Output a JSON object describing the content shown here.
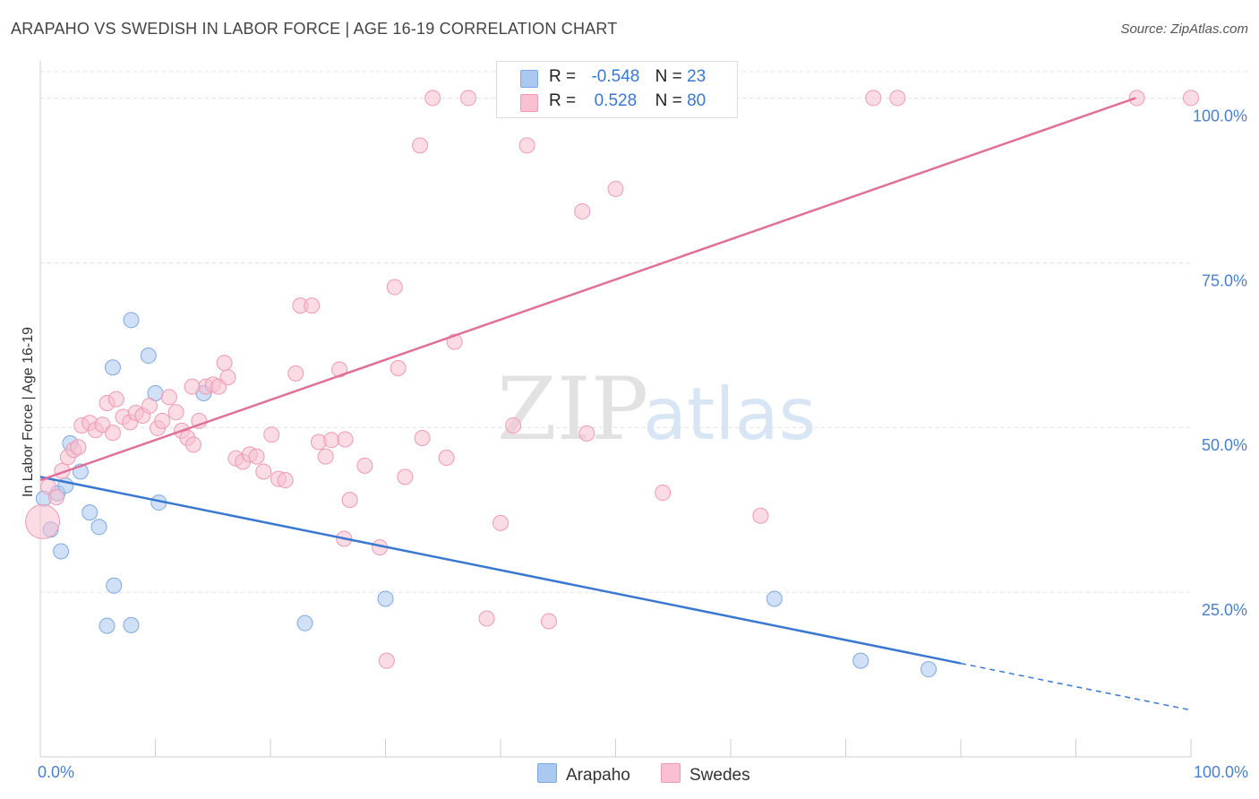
{
  "title": "ARAPAHO VS SWEDISH IN LABOR FORCE | AGE 16-19 CORRELATION CHART",
  "source": "Source: ZipAtlas.com",
  "watermark": {
    "zip": "ZIP",
    "atlas": "atlas"
  },
  "legend": {
    "rows": [
      {
        "r_label": "R =",
        "r_value": "-0.548",
        "n_label": "N =",
        "n_value": "23",
        "color": "#aac8f0",
        "stroke": "#7fa8e0"
      },
      {
        "r_label": "R =",
        "r_value": "0.528",
        "n_label": "N =",
        "n_value": "80",
        "color": "#f8c0d0",
        "stroke": "#ee9ab4"
      }
    ],
    "bottom": [
      {
        "label": "Arapaho",
        "color": "#aac8f0",
        "stroke": "#7fa8e0"
      },
      {
        "label": "Swedes",
        "color": "#f8c0d0",
        "stroke": "#ee9ab4"
      }
    ]
  },
  "chart_data": {
    "type": "scatter",
    "title": "ARAPAHO VS SWEDISH IN LABOR FORCE | AGE 16-19 CORRELATION CHART",
    "xlabel": "",
    "ylabel": "In Labor Force | Age 16-19",
    "xlim": [
      0,
      100
    ],
    "ylim": [
      0,
      104
    ],
    "x_tick_labels": [
      "0.0%",
      "100.0%"
    ],
    "y_ticks": [
      {
        "value": 25,
        "label": "25.0%"
      },
      {
        "value": 50,
        "label": "50.0%"
      },
      {
        "value": 75,
        "label": "75.0%"
      },
      {
        "value": 100,
        "label": "100.0%"
      }
    ],
    "grid": true,
    "series": [
      {
        "name": "Arapaho",
        "color": "#aac8f0",
        "stroke": "#7fa8e0",
        "line_color": "#3a78d0",
        "points": [
          [
            0.3,
            39.2
          ],
          [
            0.9,
            34.5
          ],
          [
            1.5,
            40.0
          ],
          [
            1.8,
            31.2
          ],
          [
            2.2,
            41.2
          ],
          [
            2.6,
            47.6
          ],
          [
            3.5,
            43.3
          ],
          [
            4.3,
            37.1
          ],
          [
            5.1,
            34.9
          ],
          [
            5.8,
            19.9
          ],
          [
            6.3,
            59.1
          ],
          [
            6.4,
            26.0
          ],
          [
            7.9,
            66.3
          ],
          [
            7.9,
            20.0
          ],
          [
            9.4,
            60.9
          ],
          [
            10.0,
            55.2
          ],
          [
            10.3,
            38.6
          ],
          [
            14.2,
            55.2
          ],
          [
            23.0,
            20.3
          ],
          [
            30.0,
            24.0
          ],
          [
            63.8,
            24.0
          ],
          [
            71.3,
            14.6
          ],
          [
            77.2,
            13.3
          ]
        ],
        "trend": {
          "x0": 0,
          "y0": 42.5,
          "x1": 80,
          "y1": 14.2,
          "dash_x1": 100,
          "dash_y1": 7.1
        }
      },
      {
        "name": "Swedes",
        "color": "#f8c0d0",
        "stroke": "#ee9ab4",
        "line_color": "#e07098",
        "points": [
          [
            0.2,
            35.7
          ],
          [
            0.7,
            41.0
          ],
          [
            1.4,
            39.4
          ],
          [
            1.9,
            43.4
          ],
          [
            2.4,
            45.5
          ],
          [
            2.9,
            46.6
          ],
          [
            3.3,
            47.0
          ],
          [
            3.6,
            50.3
          ],
          [
            4.3,
            50.7
          ],
          [
            4.8,
            49.6
          ],
          [
            5.4,
            50.4
          ],
          [
            5.8,
            53.7
          ],
          [
            6.3,
            49.2
          ],
          [
            6.6,
            54.3
          ],
          [
            7.2,
            51.6
          ],
          [
            7.8,
            50.8
          ],
          [
            8.3,
            52.2
          ],
          [
            8.9,
            51.8
          ],
          [
            9.5,
            53.3
          ],
          [
            10.2,
            49.9
          ],
          [
            10.6,
            51.0
          ],
          [
            11.2,
            54.6
          ],
          [
            11.8,
            52.3
          ],
          [
            12.3,
            49.5
          ],
          [
            12.8,
            48.4
          ],
          [
            13.3,
            47.4
          ],
          [
            13.8,
            51.0
          ],
          [
            14.4,
            56.2
          ],
          [
            15.0,
            56.5
          ],
          [
            15.5,
            56.2
          ],
          [
            16.0,
            59.8
          ],
          [
            16.3,
            57.6
          ],
          [
            17.0,
            45.3
          ],
          [
            17.6,
            44.8
          ],
          [
            18.2,
            45.9
          ],
          [
            18.8,
            45.6
          ],
          [
            19.4,
            43.3
          ],
          [
            20.1,
            48.9
          ],
          [
            20.7,
            42.2
          ],
          [
            21.3,
            42.0
          ],
          [
            22.2,
            58.2
          ],
          [
            22.6,
            68.5
          ],
          [
            23.6,
            68.5
          ],
          [
            24.2,
            47.8
          ],
          [
            24.8,
            45.6
          ],
          [
            25.3,
            48.1
          ],
          [
            26.0,
            58.8
          ],
          [
            26.4,
            33.1
          ],
          [
            26.9,
            39.0
          ],
          [
            28.2,
            44.2
          ],
          [
            29.5,
            31.8
          ],
          [
            30.1,
            14.6
          ],
          [
            30.8,
            71.3
          ],
          [
            31.1,
            59.0
          ],
          [
            31.7,
            42.5
          ],
          [
            33.0,
            92.8
          ],
          [
            33.2,
            48.4
          ],
          [
            34.1,
            100.0
          ],
          [
            35.3,
            45.4
          ],
          [
            36.0,
            63.0
          ],
          [
            37.2,
            100.0
          ],
          [
            38.8,
            21.0
          ],
          [
            40.0,
            35.5
          ],
          [
            41.1,
            50.3
          ],
          [
            42.3,
            92.8
          ],
          [
            44.2,
            20.6
          ],
          [
            47.1,
            82.8
          ],
          [
            47.5,
            49.1
          ],
          [
            48.2,
            100.0
          ],
          [
            50.0,
            86.2
          ],
          [
            54.1,
            40.1
          ],
          [
            56.3,
            100.0
          ],
          [
            56.8,
            100.0
          ],
          [
            62.6,
            36.6
          ],
          [
            72.4,
            100.0
          ],
          [
            74.5,
            100.0
          ],
          [
            95.3,
            100.0
          ],
          [
            100.0,
            100.0
          ],
          [
            26.5,
            48.2
          ],
          [
            13.2,
            56.2
          ]
        ],
        "trend": {
          "x0": 0,
          "y0": 42.0,
          "x1": 95.2,
          "y1": 100.0
        }
      }
    ]
  }
}
